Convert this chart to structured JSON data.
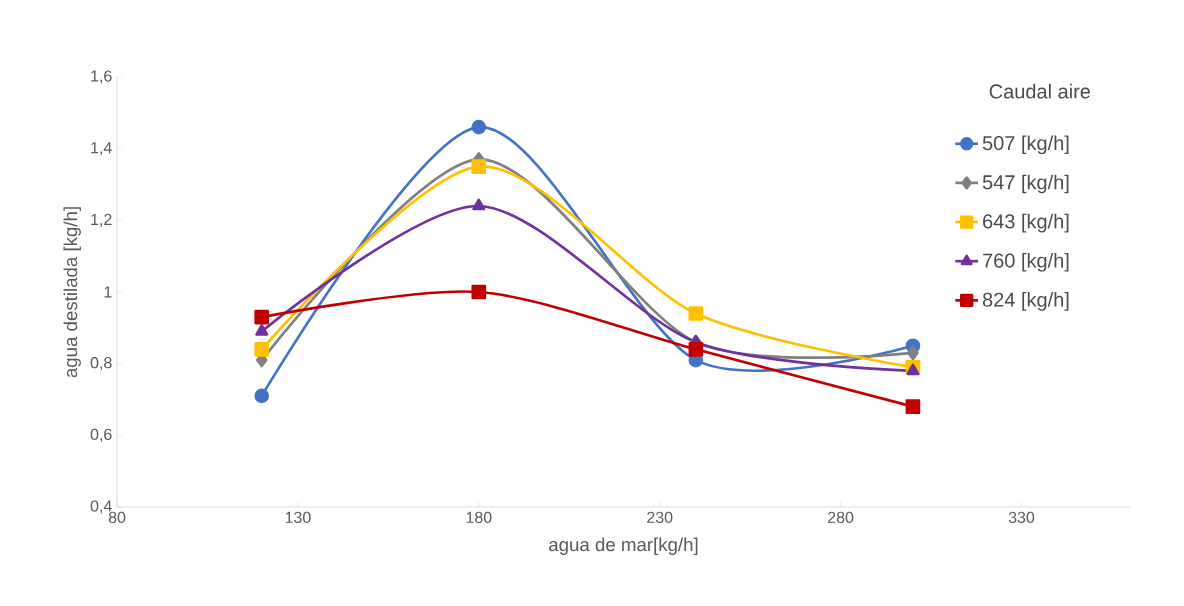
{
  "chart_data": {
    "type": "line",
    "xlabel": "agua de mar[kg/h]",
    "ylabel": "agua destilada [kg/h]",
    "legend_title": "Caudal aire",
    "legend": "right",
    "x": [
      120,
      180,
      240,
      300
    ],
    "xlim": [
      80,
      360
    ],
    "xticks": [
      80,
      130,
      180,
      230,
      280,
      330
    ],
    "ylim": [
      0.4,
      1.6
    ],
    "yticks": [
      {
        "value": 0.4,
        "label": "0,4"
      },
      {
        "value": 0.6,
        "label": "0,6"
      },
      {
        "value": 0.8,
        "label": "0,8"
      },
      1,
      {
        "value": 1.2,
        "label": "1,2"
      },
      {
        "value": 1.4,
        "label": "1,4"
      },
      {
        "value": 1.6,
        "label": "1,6"
      }
    ],
    "series": [
      {
        "name": "507 [kg/h]",
        "color": "#4472c4",
        "marker": "circle",
        "values": [
          0.71,
          1.46,
          0.81,
          0.85
        ]
      },
      {
        "name": "547 [kg/h]",
        "color": "#808080",
        "marker": "diamond",
        "values": [
          0.81,
          1.37,
          0.86,
          0.83
        ]
      },
      {
        "name": "643 [kg/h]",
        "color": "#ffc000",
        "marker": "square",
        "values": [
          0.84,
          1.35,
          0.94,
          0.79
        ]
      },
      {
        "name": "760 [kg/h]",
        "color": "#7030a0",
        "marker": "triangle",
        "values": [
          0.89,
          1.24,
          0.86,
          0.78
        ]
      },
      {
        "name": "824 [kg/h]",
        "color": "#c00000",
        "marker": "square",
        "values": [
          0.93,
          1.0,
          0.84,
          0.68
        ]
      }
    ]
  }
}
